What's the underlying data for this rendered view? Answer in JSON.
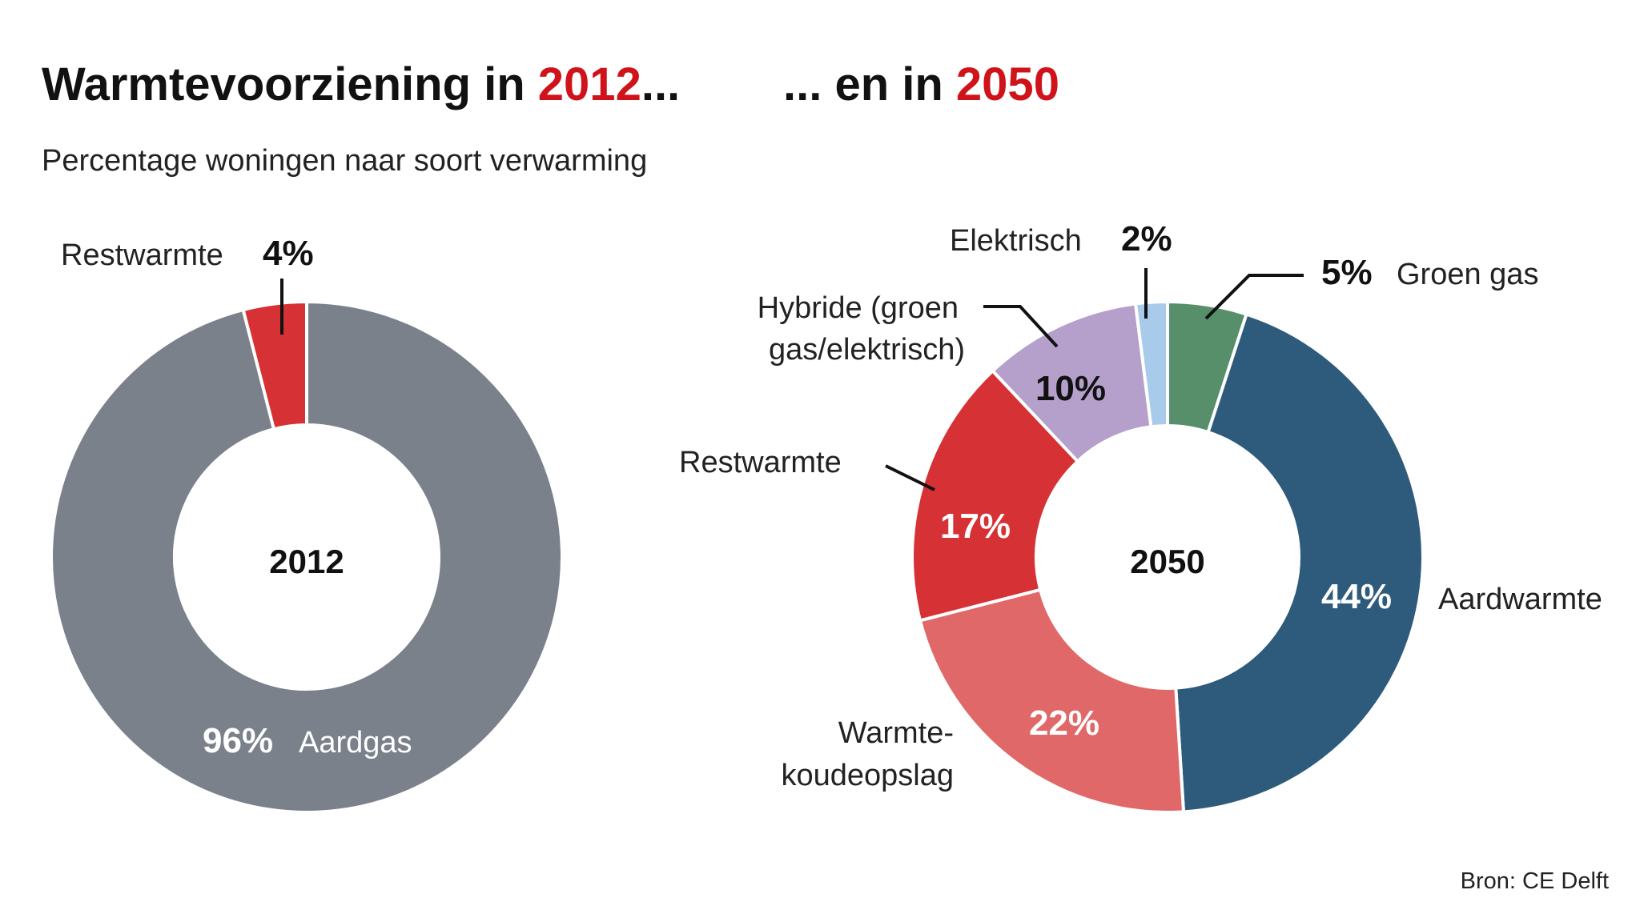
{
  "title": {
    "part1": "Warmtevoorziening in ",
    "year1": "2012",
    "dots1": "...",
    "part2": "... en in ",
    "year2": "2050"
  },
  "subtitle": "Percentage woningen naar soort verwarming",
  "source": "Bron: CE Delft",
  "chart_data": [
    {
      "type": "pie",
      "donut": true,
      "center_label": "2012",
      "slices": [
        {
          "name": "Aardgas",
          "value": 96,
          "label": "96%",
          "color": "#7a818b"
        },
        {
          "name": "Restwarmte",
          "value": 4,
          "label": "4%",
          "color": "#d63134"
        }
      ]
    },
    {
      "type": "pie",
      "donut": true,
      "center_label": "2050",
      "slices": [
        {
          "name": "Groen gas",
          "value": 5,
          "label": "5%",
          "color": "#568f6a"
        },
        {
          "name": "Aardwarmte",
          "value": 44,
          "label": "44%",
          "color": "#2e5a7b"
        },
        {
          "name": "Warmte-koudeopslag",
          "name_line1": "Warmte-",
          "name_line2": "koudeopslag",
          "value": 22,
          "label": "22%",
          "color": "#e16868"
        },
        {
          "name": "Restwarmte",
          "value": 17,
          "label": "17%",
          "color": "#d63134"
        },
        {
          "name": "Hybride (groen gas/elektrisch)",
          "name_line1": "Hybride (groen",
          "name_line2": "gas/elektrisch)",
          "value": 10,
          "label": "10%",
          "color": "#b5a0cc"
        },
        {
          "name": "Elektrisch",
          "value": 2,
          "label": "2%",
          "color": "#a9cbeb"
        }
      ]
    }
  ]
}
